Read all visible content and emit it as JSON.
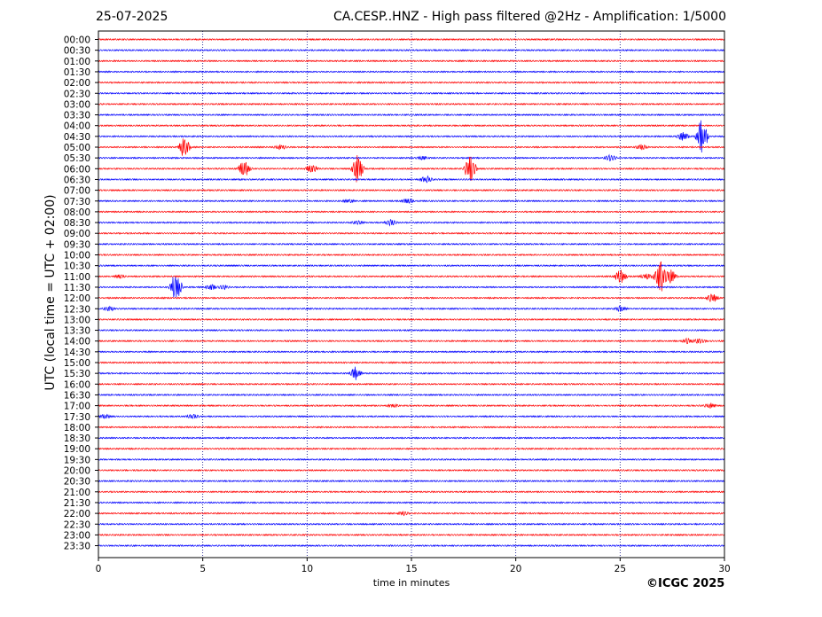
{
  "header": {
    "date": "25-07-2025",
    "title": "CA.CESP..HNZ - High pass filtered @2Hz - Amplification: 1/5000"
  },
  "copyright": "©ICGC 2025",
  "chart_data": {
    "type": "line",
    "title": "CA.CESP..HNZ - High pass filtered @2Hz - Amplification: 1/5000",
    "xlabel": "time in minutes",
    "ylabel": "UTC (local time = UTC + 02:00)",
    "xlim": [
      0,
      30
    ],
    "x_ticks": [
      0,
      5,
      10,
      15,
      20,
      25,
      30
    ],
    "grid": "vertical dotted lines at every 5 minutes",
    "row_labels": [
      "00:00",
      "00:30",
      "01:00",
      "01:30",
      "02:00",
      "02:30",
      "03:00",
      "03:30",
      "04:00",
      "04:30",
      "05:00",
      "05:30",
      "06:00",
      "06:30",
      "07:00",
      "07:30",
      "08:00",
      "08:30",
      "09:00",
      "09:30",
      "10:00",
      "10:30",
      "11:00",
      "11:30",
      "12:00",
      "12:30",
      "13:00",
      "13:30",
      "14:00",
      "14:30",
      "15:00",
      "15:30",
      "16:00",
      "16:30",
      "17:00",
      "17:30",
      "18:00",
      "18:30",
      "19:00",
      "19:30",
      "20:00",
      "20:30",
      "21:00",
      "21:30",
      "22:00",
      "22:30",
      "23:00",
      "23:30"
    ],
    "trace_colors": [
      "#ff0000",
      "#0000ff"
    ],
    "events": [
      {
        "row": 9,
        "minute": 28.9,
        "amplitude": 1.0
      },
      {
        "row": 9,
        "minute": 28.0,
        "amplitude": 0.25
      },
      {
        "row": 10,
        "minute": 4.1,
        "amplitude": 0.65
      },
      {
        "row": 10,
        "minute": 8.7,
        "amplitude": 0.15
      },
      {
        "row": 10,
        "minute": 26.0,
        "amplitude": 0.15
      },
      {
        "row": 11,
        "minute": 24.5,
        "amplitude": 0.2
      },
      {
        "row": 11,
        "minute": 15.5,
        "amplitude": 0.1
      },
      {
        "row": 12,
        "minute": 7.0,
        "amplitude": 0.55
      },
      {
        "row": 12,
        "minute": 10.2,
        "amplitude": 0.3
      },
      {
        "row": 12,
        "minute": 12.4,
        "amplitude": 1.0
      },
      {
        "row": 12,
        "minute": 17.8,
        "amplitude": 0.8
      },
      {
        "row": 13,
        "minute": 15.7,
        "amplitude": 0.2
      },
      {
        "row": 15,
        "minute": 14.8,
        "amplitude": 0.15
      },
      {
        "row": 15,
        "minute": 12.0,
        "amplitude": 0.08
      },
      {
        "row": 17,
        "minute": 12.4,
        "amplitude": 0.12
      },
      {
        "row": 17,
        "minute": 14.0,
        "amplitude": 0.15
      },
      {
        "row": 22,
        "minute": 25.0,
        "amplitude": 0.5
      },
      {
        "row": 22,
        "minute": 26.9,
        "amplitude": 1.0
      },
      {
        "row": 22,
        "minute": 27.4,
        "amplitude": 0.45
      },
      {
        "row": 22,
        "minute": 26.2,
        "amplitude": 0.2
      },
      {
        "row": 22,
        "minute": 1.0,
        "amplitude": 0.08
      },
      {
        "row": 23,
        "minute": 3.7,
        "amplitude": 0.9
      },
      {
        "row": 23,
        "minute": 5.4,
        "amplitude": 0.15
      },
      {
        "row": 23,
        "minute": 6.0,
        "amplitude": 0.12
      },
      {
        "row": 24,
        "minute": 29.4,
        "amplitude": 0.25
      },
      {
        "row": 25,
        "minute": 0.5,
        "amplitude": 0.12
      },
      {
        "row": 25,
        "minute": 25.0,
        "amplitude": 0.15
      },
      {
        "row": 28,
        "minute": 28.2,
        "amplitude": 0.15
      },
      {
        "row": 28,
        "minute": 28.8,
        "amplitude": 0.15
      },
      {
        "row": 31,
        "minute": 12.3,
        "amplitude": 0.35
      },
      {
        "row": 34,
        "minute": 14.1,
        "amplitude": 0.1
      },
      {
        "row": 34,
        "minute": 29.3,
        "amplitude": 0.15
      },
      {
        "row": 35,
        "minute": 0.3,
        "amplitude": 0.12
      },
      {
        "row": 35,
        "minute": 4.5,
        "amplitude": 0.12
      },
      {
        "row": 44,
        "minute": 14.6,
        "amplitude": 0.1
      }
    ]
  }
}
